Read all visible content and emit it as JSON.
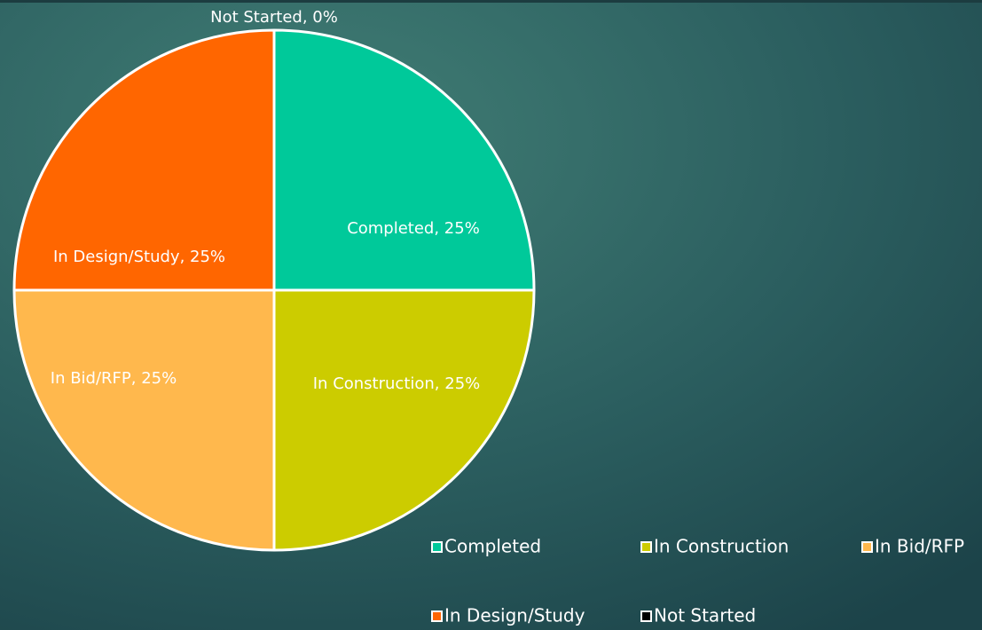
{
  "chart_data": {
    "type": "pie",
    "categories": [
      "Completed",
      "In Construction",
      "In Bid/RFP",
      "In Design/Study",
      "Not Started"
    ],
    "values": [
      25,
      25,
      25,
      25,
      0
    ],
    "value_labels": [
      "Completed, 25%",
      "In Construction, 25%",
      "In Bid/RFP, 25%",
      "In Design/Study, 25%",
      "Not Started, 0%"
    ],
    "colors": [
      "#00c99a",
      "#cccc00",
      "#ffb84d",
      "#ff6600",
      "#000000"
    ],
    "legend": "bottom-right"
  }
}
